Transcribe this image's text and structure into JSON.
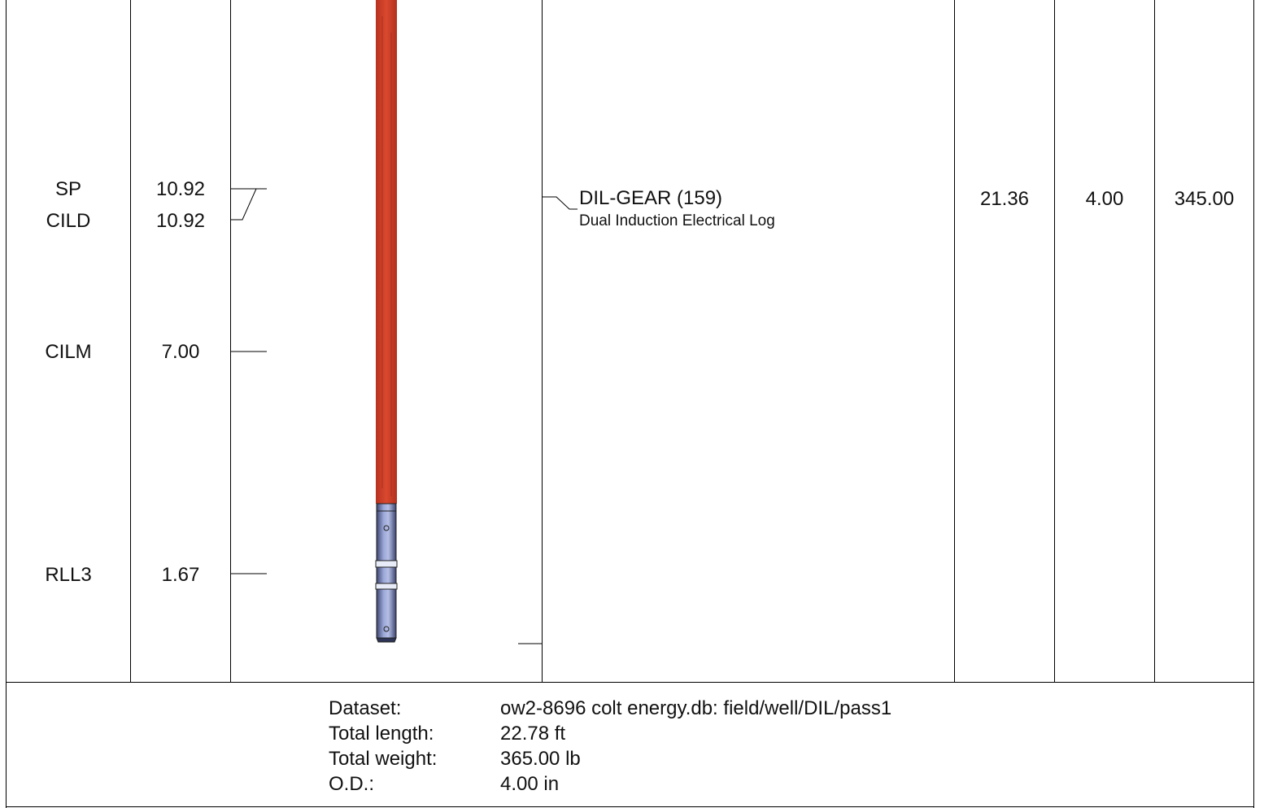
{
  "sensors": [
    {
      "mnemonic": "SP",
      "offset": "10.92"
    },
    {
      "mnemonic": "CILD",
      "offset": "10.92"
    },
    {
      "mnemonic": "CILM",
      "offset": "7.00"
    },
    {
      "mnemonic": "RLL3",
      "offset": "1.67"
    }
  ],
  "tool": {
    "name": "DIL-GEAR (159)",
    "description": "Dual Induction Electrical Log",
    "length": "21.36",
    "od": "4.00",
    "weight": "345.00"
  },
  "footer": {
    "labels": [
      "Dataset:",
      "Total length:",
      "Total weight:",
      "O.D.:"
    ],
    "values": [
      "ow2-8696 colt energy.db: field/well/DIL/pass1",
      "22.78 ft",
      "365.00 lb",
      "4.00 in"
    ]
  },
  "colors": {
    "tool_body": "#d0412c",
    "tool_metal": "#6d7ab0",
    "grid_line": "#000000"
  }
}
